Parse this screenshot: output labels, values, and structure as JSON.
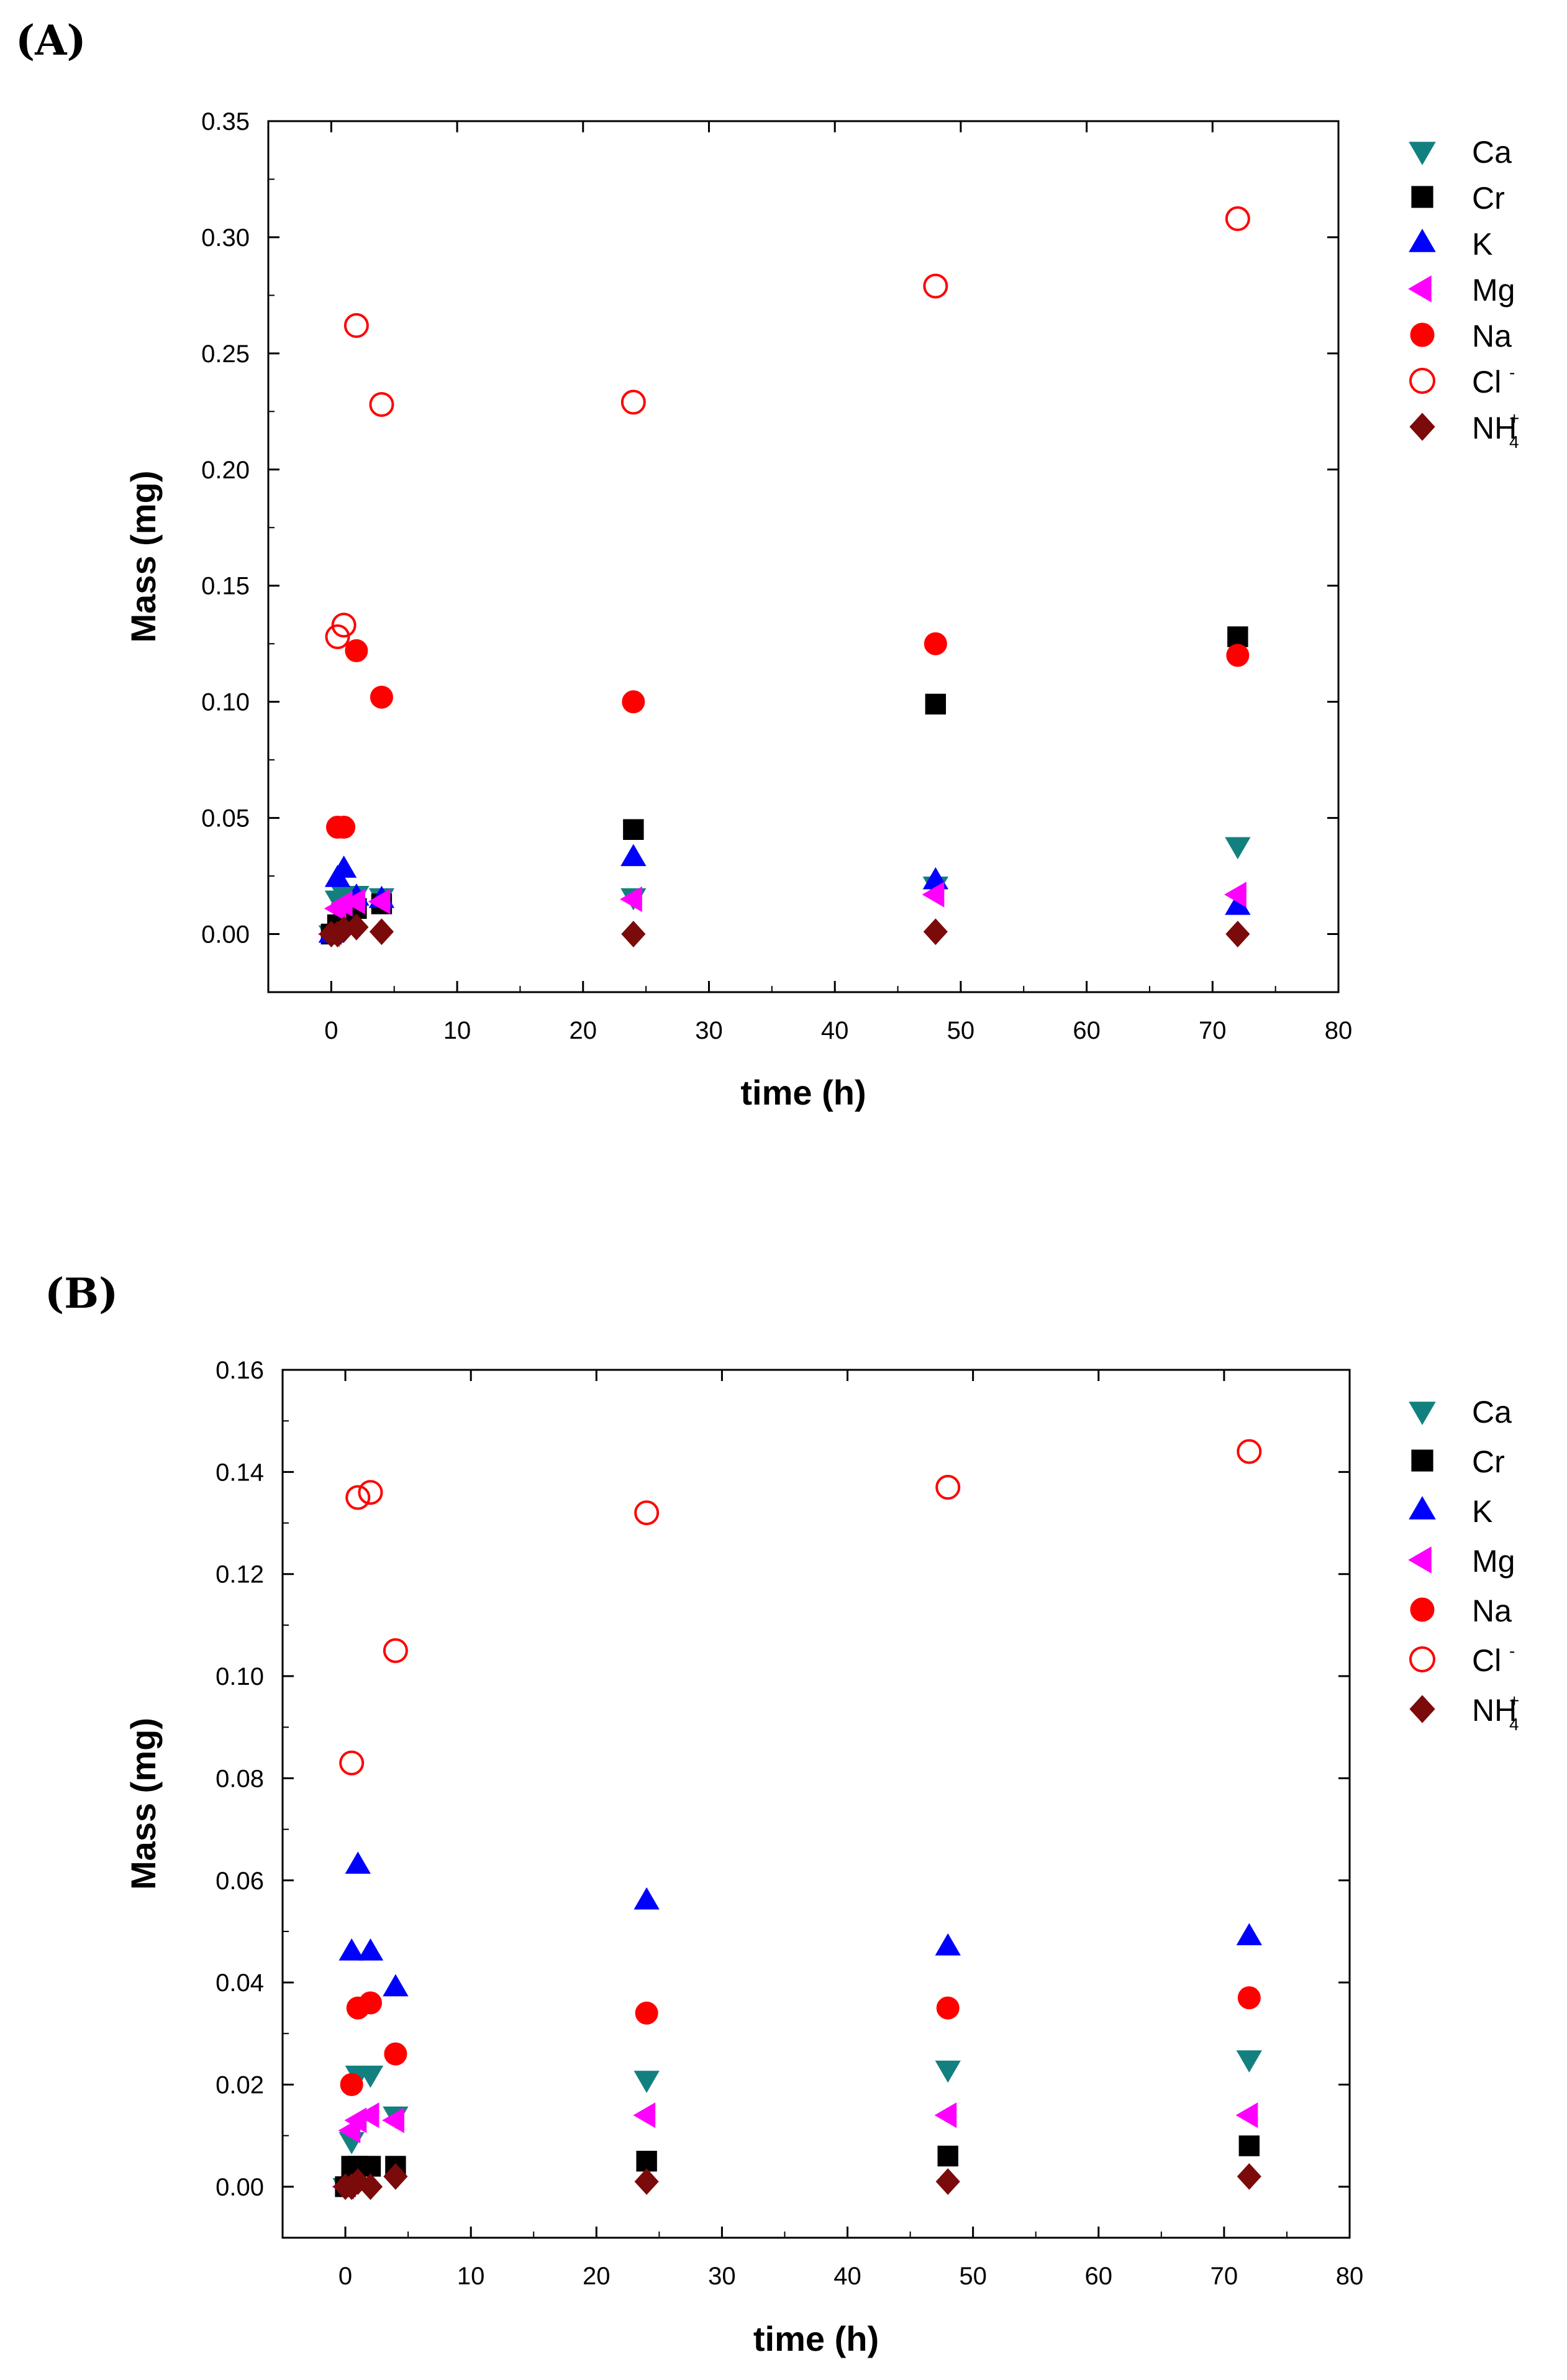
{
  "chart_data": [
    {
      "panel_label": "(A)",
      "type": "scatter",
      "xlabel": "time (h)",
      "ylabel": "Mass (mg)",
      "xlim": [
        -5,
        80
      ],
      "ylim": [
        -0.025,
        0.35
      ],
      "xticks": [
        0,
        10,
        20,
        30,
        40,
        50,
        60,
        70,
        80
      ],
      "yticks": [
        0.0,
        0.05,
        0.1,
        0.15,
        0.2,
        0.25,
        0.3,
        0.35
      ],
      "ytick_labels": [
        "0.00",
        "0.05",
        "0.10",
        "0.15",
        "0.20",
        "0.25",
        "0.30",
        "0.35"
      ],
      "legend_position": "right",
      "series": [
        {
          "name": "Ca",
          "marker": "triangle-down",
          "color": "#138080",
          "filled": true,
          "x": [
            0,
            0.5,
            1,
            2,
            4,
            24,
            48,
            72
          ],
          "y": [
            0.0,
            0.015,
            0.017,
            0.017,
            0.016,
            0.016,
            0.021,
            0.038
          ]
        },
        {
          "name": "Cr",
          "marker": "square",
          "color": "#000000",
          "filled": true,
          "x": [
            0,
            0.5,
            1,
            2,
            4,
            24,
            48,
            72
          ],
          "y": [
            0.0,
            0.004,
            0.007,
            0.011,
            0.013,
            0.045,
            0.099,
            0.128
          ]
        },
        {
          "name": "K",
          "marker": "triangle-up",
          "color": "#0000ff",
          "filled": true,
          "x": [
            0,
            0.5,
            1,
            2,
            4,
            24,
            48,
            72
          ],
          "y": [
            0.0,
            0.024,
            0.028,
            0.016,
            0.015,
            0.033,
            0.023,
            0.012
          ]
        },
        {
          "name": "Mg",
          "marker": "triangle-left",
          "color": "#ff00ff",
          "filled": true,
          "x": [
            0,
            0.5,
            1,
            2,
            4,
            24,
            48,
            72
          ],
          "y": [
            0.0,
            0.011,
            0.013,
            0.014,
            0.014,
            0.015,
            0.017,
            0.017
          ]
        },
        {
          "name": "Na",
          "marker": "circle",
          "color": "#ff0000",
          "filled": true,
          "x": [
            0.5,
            1,
            2,
            4,
            24,
            48,
            72
          ],
          "y": [
            0.046,
            0.046,
            0.122,
            0.102,
            0.1,
            0.125,
            0.12
          ]
        },
        {
          "name": "Cl",
          "superscript": "-",
          "subscript": "",
          "marker": "circle",
          "color": "#ff0000",
          "filled": false,
          "x": [
            0.5,
            1,
            2,
            4,
            24,
            48,
            72
          ],
          "y": [
            0.128,
            0.133,
            0.262,
            0.228,
            0.229,
            0.279,
            0.308
          ]
        },
        {
          "name": "NH",
          "superscript": "+",
          "subscript": "4",
          "marker": "diamond",
          "color": "#7b0a0a",
          "filled": true,
          "x": [
            0,
            0.5,
            1,
            2,
            4,
            24,
            48,
            72
          ],
          "y": [
            0.0,
            0.0,
            0.002,
            0.003,
            0.001,
            0.0,
            0.001,
            0.0
          ]
        }
      ]
    },
    {
      "panel_label": "(B)",
      "type": "scatter",
      "xlabel": "time (h)",
      "ylabel": "Mass (mg)",
      "xlim": [
        -5,
        80
      ],
      "ylim": [
        -0.01,
        0.16
      ],
      "xticks": [
        0,
        10,
        20,
        30,
        40,
        50,
        60,
        70,
        80
      ],
      "yticks": [
        0.0,
        0.02,
        0.04,
        0.06,
        0.08,
        0.1,
        0.12,
        0.14,
        0.16
      ],
      "ytick_labels": [
        "0.00",
        "0.02",
        "0.04",
        "0.06",
        "0.08",
        "0.10",
        "0.12",
        "0.14",
        "0.16"
      ],
      "legend_position": "right",
      "series": [
        {
          "name": "Ca",
          "marker": "triangle-down",
          "color": "#138080",
          "filled": true,
          "x": [
            0,
            0.5,
            1,
            2,
            4,
            24,
            48,
            72
          ],
          "y": [
            0.0,
            0.009,
            0.022,
            0.022,
            0.014,
            0.021,
            0.023,
            0.025
          ]
        },
        {
          "name": "Cr",
          "marker": "square",
          "color": "#000000",
          "filled": true,
          "x": [
            0,
            0.5,
            1,
            2,
            4,
            24,
            48,
            72
          ],
          "y": [
            0.0,
            0.004,
            0.004,
            0.004,
            0.004,
            0.005,
            0.006,
            0.008
          ]
        },
        {
          "name": "K",
          "marker": "triangle-up",
          "color": "#0000ff",
          "filled": true,
          "x": [
            0.5,
            1,
            2,
            4,
            24,
            48,
            72
          ],
          "y": [
            0.046,
            0.063,
            0.046,
            0.039,
            0.056,
            0.047,
            0.049
          ]
        },
        {
          "name": "Mg",
          "marker": "triangle-left",
          "color": "#ff00ff",
          "filled": true,
          "x": [
            0,
            0.5,
            1,
            2,
            4,
            24,
            48,
            72
          ],
          "y": [
            0.0,
            0.011,
            0.013,
            0.014,
            0.013,
            0.014,
            0.014,
            0.014
          ]
        },
        {
          "name": "Na",
          "marker": "circle",
          "color": "#ff0000",
          "filled": true,
          "x": [
            0.5,
            1,
            2,
            4,
            24,
            48,
            72
          ],
          "y": [
            0.02,
            0.035,
            0.036,
            0.026,
            0.034,
            0.035,
            0.037
          ]
        },
        {
          "name": "Cl",
          "superscript": "-",
          "subscript": "",
          "marker": "circle",
          "color": "#ff0000",
          "filled": false,
          "x": [
            0.5,
            1,
            2,
            4,
            24,
            48,
            72
          ],
          "y": [
            0.083,
            0.135,
            0.136,
            0.105,
            0.132,
            0.137,
            0.144
          ]
        },
        {
          "name": "NH",
          "superscript": "+",
          "subscript": "4",
          "marker": "diamond",
          "color": "#7b0a0a",
          "filled": true,
          "x": [
            0,
            0.5,
            1,
            2,
            4,
            24,
            48,
            72
          ],
          "y": [
            0.0,
            0.0,
            0.001,
            0.0,
            0.002,
            0.001,
            0.001,
            0.002
          ]
        }
      ]
    }
  ]
}
